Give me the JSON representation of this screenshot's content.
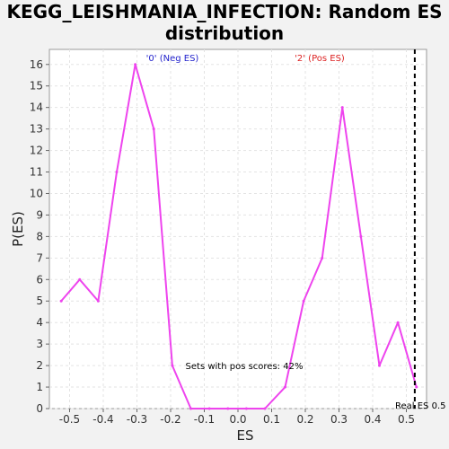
{
  "chart_data": {
    "type": "line",
    "title_line1": "KEGG_LEISHMANIA_INFECTION: Random ES",
    "title_line2": "distribution",
    "xlabel": "ES",
    "ylabel": "P(ES)",
    "xlim": [
      -0.56,
      0.56
    ],
    "ylim": [
      0,
      16.7
    ],
    "x_ticks": [
      -0.5,
      -0.4,
      -0.3,
      -0.2,
      -0.1,
      0.0,
      0.1,
      0.2,
      0.3,
      0.4,
      0.5
    ],
    "x_tick_labels": [
      "-0.5",
      "-0.4",
      "-0.3",
      "-0.2",
      "-0.1",
      "0.0",
      "0.1",
      "0.2",
      "0.3",
      "0.4",
      "0.5"
    ],
    "y_ticks": [
      0,
      1,
      2,
      3,
      4,
      5,
      6,
      7,
      8,
      9,
      10,
      11,
      12,
      13,
      14,
      15,
      16
    ],
    "y_tick_labels": [
      "0",
      "1",
      "2",
      "3",
      "4",
      "5",
      "6",
      "7",
      "8",
      "9",
      "10",
      "11",
      "12",
      "13",
      "14",
      "15",
      "16"
    ],
    "grid": true,
    "series": [
      {
        "color": "#ee44ee",
        "x": [
          -0.525,
          -0.47,
          -0.415,
          -0.36,
          -0.305,
          -0.25,
          -0.195,
          -0.14,
          -0.085,
          -0.03,
          0.025,
          0.08,
          0.14,
          0.195,
          0.25,
          0.31,
          0.365,
          0.42,
          0.475,
          0.53
        ],
        "y": [
          5,
          6,
          5,
          11,
          16,
          13,
          2,
          0,
          0,
          0,
          0,
          0,
          1,
          5,
          7,
          14,
          8,
          2,
          4,
          1
        ]
      }
    ],
    "real_es": 0.525,
    "real_es_label": "Real ES 0.5",
    "neg_label": "'0' (Neg ES)",
    "pos_label": "'2' (Pos ES)",
    "pos_scores_note": "Sets with pos scores: 42%",
    "neg_color": "#2222cc",
    "pos_color": "#dd2222"
  }
}
